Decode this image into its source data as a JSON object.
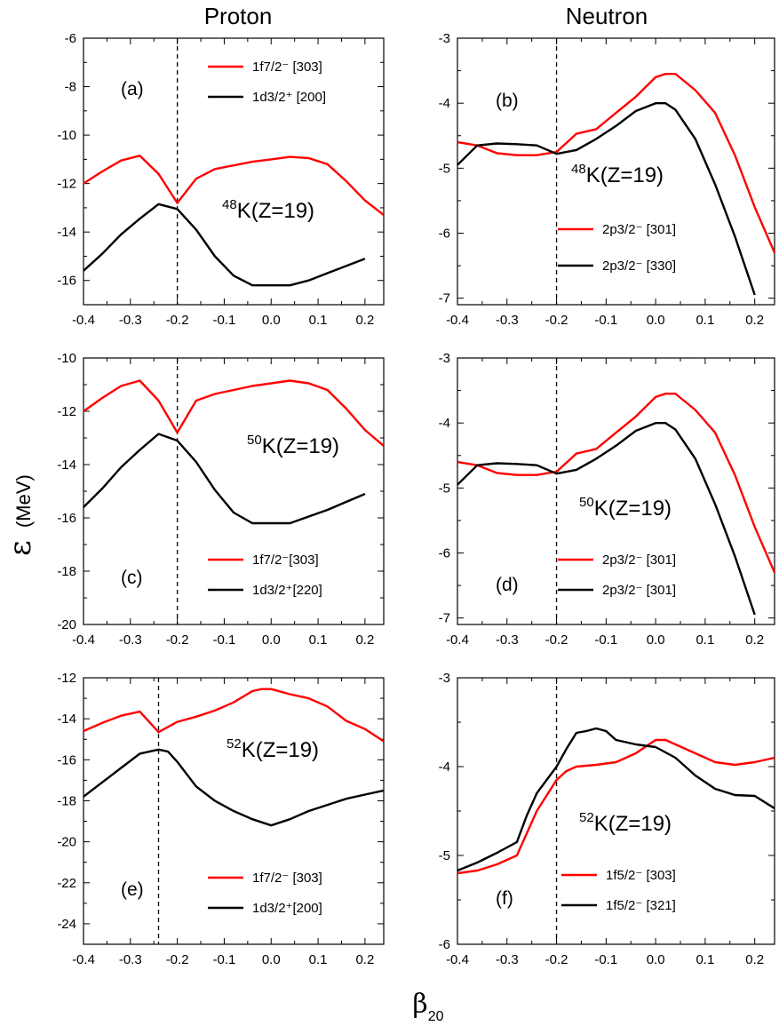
{
  "figure": {
    "column_titles": [
      "Proton",
      "Neutron"
    ],
    "y_axis_label": "ε",
    "y_axis_unit": "(MeV)",
    "x_axis_label": "β",
    "x_axis_subscript": "20"
  },
  "chart_data": [
    {
      "id": "a",
      "type": "line",
      "letter": "(a)",
      "nucleus": {
        "mass": "48",
        "text": "K(Z=19)"
      },
      "xlim": [
        -0.4,
        0.24
      ],
      "ylim": [
        -17,
        -6
      ],
      "xticks": [
        -0.4,
        -0.3,
        -0.2,
        -0.1,
        0.0,
        0.1,
        0.2
      ],
      "xtick_labels": [
        "-0.4",
        "-0.3",
        "-0.2",
        "-0.1",
        "0.0",
        "0.1",
        "0.2"
      ],
      "yticks": [
        -16,
        -14,
        -12,
        -10,
        -8,
        -6
      ],
      "ytick_labels": [
        "-16",
        "-14",
        "-12",
        "-10",
        "-8",
        "-6"
      ],
      "dashed_x": -0.2,
      "series": [
        {
          "name": "1f7/2⁻ [303]",
          "color": "#ff0000",
          "x": [
            -0.4,
            -0.36,
            -0.32,
            -0.28,
            -0.24,
            -0.2,
            -0.16,
            -0.12,
            -0.08,
            -0.04,
            0.0,
            0.04,
            0.08,
            0.12,
            0.16,
            0.2,
            0.24
          ],
          "y": [
            -12.0,
            -11.5,
            -11.05,
            -10.85,
            -11.6,
            -12.8,
            -11.8,
            -11.4,
            -11.25,
            -11.1,
            -11.0,
            -10.9,
            -10.95,
            -11.2,
            -11.9,
            -12.7,
            -13.3
          ]
        },
        {
          "name": "1d3/2⁺ [200]",
          "color": "#000000",
          "x": [
            -0.4,
            -0.36,
            -0.32,
            -0.28,
            -0.24,
            -0.2,
            -0.16,
            -0.12,
            -0.08,
            -0.04,
            0.0,
            0.04,
            0.08,
            0.12,
            0.16,
            0.2
          ],
          "y": [
            -15.6,
            -14.9,
            -14.1,
            -13.45,
            -12.85,
            -13.05,
            -13.9,
            -15.0,
            -15.8,
            -16.2,
            -16.2,
            -16.2,
            -16.0,
            -15.7,
            -15.4,
            -15.1
          ]
        }
      ]
    },
    {
      "id": "b",
      "type": "line",
      "letter": "(b)",
      "nucleus": {
        "mass": "48",
        "text": "K(Z=19)"
      },
      "xlim": [
        -0.4,
        0.24
      ],
      "ylim": [
        -7.1,
        -3
      ],
      "xticks": [
        -0.4,
        -0.3,
        -0.2,
        -0.1,
        0.0,
        0.1,
        0.2
      ],
      "xtick_labels": [
        "-0.4",
        "-0.3",
        "-0.2",
        "-0.1",
        "0.0",
        "0.1",
        "0.2"
      ],
      "yticks": [
        -7,
        -6,
        -5,
        -4,
        -3
      ],
      "ytick_labels": [
        "-7",
        "-6",
        "-5",
        "-4",
        "-3"
      ],
      "dashed_x": -0.2,
      "series": [
        {
          "name": "2p3/2⁻ [301]",
          "color": "#ff0000",
          "x": [
            -0.4,
            -0.36,
            -0.32,
            -0.28,
            -0.24,
            -0.2,
            -0.16,
            -0.12,
            -0.08,
            -0.04,
            0.0,
            0.02,
            0.04,
            0.08,
            0.12,
            0.16,
            0.2,
            0.24
          ],
          "y": [
            -4.6,
            -4.65,
            -4.77,
            -4.8,
            -4.8,
            -4.75,
            -4.47,
            -4.4,
            -4.15,
            -3.9,
            -3.6,
            -3.55,
            -3.55,
            -3.8,
            -4.15,
            -4.8,
            -5.6,
            -6.3
          ]
        },
        {
          "name": "2p3/2⁻ [330]",
          "color": "#000000",
          "x": [
            -0.4,
            -0.36,
            -0.32,
            -0.28,
            -0.24,
            -0.2,
            -0.16,
            -0.12,
            -0.08,
            -0.04,
            0.0,
            0.02,
            0.04,
            0.08,
            0.12,
            0.16,
            0.2
          ],
          "y": [
            -4.95,
            -4.65,
            -4.62,
            -4.63,
            -4.65,
            -4.78,
            -4.72,
            -4.55,
            -4.35,
            -4.12,
            -4.0,
            -4.0,
            -4.1,
            -4.55,
            -5.25,
            -6.05,
            -6.95
          ]
        }
      ]
    },
    {
      "id": "c",
      "type": "line",
      "letter": "(c)",
      "nucleus": {
        "mass": "50",
        "text": "K(Z=19)"
      },
      "xlim": [
        -0.4,
        0.24
      ],
      "ylim": [
        -20,
        -10
      ],
      "xticks": [
        -0.4,
        -0.3,
        -0.2,
        -0.1,
        0.0,
        0.1,
        0.2
      ],
      "xtick_labels": [
        "-0.4",
        "-0.3",
        "-0.2",
        "-0.1",
        "0.0",
        "0.1",
        "0.2"
      ],
      "yticks": [
        -20,
        -18,
        -16,
        -14,
        -12,
        -10
      ],
      "ytick_labels": [
        "-20",
        "-18",
        "-16",
        "-14",
        "-12",
        "-10"
      ],
      "dashed_x": -0.2,
      "series": [
        {
          "name": "1f7/2⁻[303]",
          "color": "#ff0000",
          "x": [
            -0.4,
            -0.36,
            -0.32,
            -0.28,
            -0.24,
            -0.2,
            -0.16,
            -0.12,
            -0.08,
            -0.04,
            0.0,
            0.04,
            0.08,
            0.12,
            0.16,
            0.2,
            0.24
          ],
          "y": [
            -12.0,
            -11.5,
            -11.05,
            -10.85,
            -11.6,
            -12.8,
            -11.6,
            -11.35,
            -11.2,
            -11.05,
            -10.95,
            -10.85,
            -10.95,
            -11.2,
            -11.9,
            -12.7,
            -13.3
          ]
        },
        {
          "name": "1d3/2⁺[220]",
          "color": "#000000",
          "x": [
            -0.4,
            -0.36,
            -0.32,
            -0.28,
            -0.24,
            -0.2,
            -0.16,
            -0.12,
            -0.08,
            -0.04,
            0.0,
            0.04,
            0.08,
            0.12,
            0.16,
            0.2
          ],
          "y": [
            -15.6,
            -14.9,
            -14.1,
            -13.45,
            -12.85,
            -13.1,
            -13.9,
            -14.95,
            -15.8,
            -16.2,
            -16.2,
            -16.2,
            -15.95,
            -15.7,
            -15.4,
            -15.1
          ]
        }
      ]
    },
    {
      "id": "d",
      "type": "line",
      "letter": "(d)",
      "nucleus": {
        "mass": "50",
        "text": "K(Z=19)"
      },
      "xlim": [
        -0.4,
        0.24
      ],
      "ylim": [
        -7.1,
        -3
      ],
      "xticks": [
        -0.4,
        -0.3,
        -0.2,
        -0.1,
        0.0,
        0.1,
        0.2
      ],
      "xtick_labels": [
        "-0.4",
        "-0.3",
        "-0.2",
        "-0.1",
        "0.0",
        "0.1",
        "0.2"
      ],
      "yticks": [
        -7,
        -6,
        -5,
        -4,
        -3
      ],
      "ytick_labels": [
        "-7",
        "-6",
        "-5",
        "-4",
        "-3"
      ],
      "dashed_x": -0.2,
      "series": [
        {
          "name": "2p3/2⁻ [301]",
          "color": "#ff0000",
          "x": [
            -0.4,
            -0.36,
            -0.32,
            -0.28,
            -0.24,
            -0.2,
            -0.16,
            -0.12,
            -0.08,
            -0.04,
            0.0,
            0.02,
            0.04,
            0.08,
            0.12,
            0.16,
            0.2,
            0.24
          ],
          "y": [
            -4.6,
            -4.65,
            -4.77,
            -4.8,
            -4.8,
            -4.75,
            -4.47,
            -4.4,
            -4.15,
            -3.9,
            -3.6,
            -3.55,
            -3.55,
            -3.8,
            -4.15,
            -4.8,
            -5.6,
            -6.3
          ]
        },
        {
          "name": "2p3/2⁻ [301]",
          "color": "#000000",
          "x": [
            -0.4,
            -0.36,
            -0.32,
            -0.28,
            -0.24,
            -0.2,
            -0.16,
            -0.12,
            -0.08,
            -0.04,
            0.0,
            0.02,
            0.04,
            0.08,
            0.12,
            0.16,
            0.2
          ],
          "y": [
            -4.95,
            -4.65,
            -4.62,
            -4.63,
            -4.65,
            -4.78,
            -4.72,
            -4.55,
            -4.35,
            -4.12,
            -4.0,
            -4.0,
            -4.1,
            -4.55,
            -5.25,
            -6.05,
            -6.95
          ]
        }
      ]
    },
    {
      "id": "e",
      "type": "line",
      "letter": "(e)",
      "nucleus": {
        "mass": "52",
        "text": "K(Z=19)"
      },
      "xlim": [
        -0.4,
        0.24
      ],
      "ylim": [
        -25,
        -12
      ],
      "xticks": [
        -0.4,
        -0.3,
        -0.2,
        -0.1,
        0.0,
        0.1,
        0.2
      ],
      "xtick_labels": [
        "-0.4",
        "-0.3",
        "-0.2",
        "-0.1",
        "0.0",
        "0.1",
        "0.2"
      ],
      "yticks": [
        -24,
        -22,
        -20,
        -18,
        -16,
        -14,
        -12
      ],
      "ytick_labels": [
        "-24",
        "-22",
        "-20",
        "-18",
        "-16",
        "-14",
        "-12"
      ],
      "dashed_x": -0.24,
      "series": [
        {
          "name": "1f7/2⁻ [303]",
          "color": "#ff0000",
          "x": [
            -0.4,
            -0.36,
            -0.32,
            -0.28,
            -0.24,
            -0.2,
            -0.16,
            -0.12,
            -0.08,
            -0.04,
            -0.02,
            0.0,
            0.04,
            0.08,
            0.12,
            0.16,
            0.2,
            0.24
          ],
          "y": [
            -14.6,
            -14.2,
            -13.85,
            -13.65,
            -14.65,
            -14.15,
            -13.9,
            -13.6,
            -13.2,
            -12.65,
            -12.55,
            -12.55,
            -12.8,
            -13.0,
            -13.4,
            -14.1,
            -14.5,
            -15.1
          ]
        },
        {
          "name": "1d3/2⁺[200]",
          "color": "#000000",
          "x": [
            -0.4,
            -0.36,
            -0.32,
            -0.28,
            -0.24,
            -0.22,
            -0.2,
            -0.16,
            -0.12,
            -0.08,
            -0.04,
            0.0,
            0.04,
            0.08,
            0.12,
            0.16,
            0.2,
            0.24
          ],
          "y": [
            -17.8,
            -17.1,
            -16.4,
            -15.7,
            -15.5,
            -15.6,
            -16.1,
            -17.3,
            -18.0,
            -18.5,
            -18.9,
            -19.2,
            -18.9,
            -18.5,
            -18.2,
            -17.9,
            -17.7,
            -17.5
          ]
        }
      ]
    },
    {
      "id": "f",
      "type": "line",
      "letter": "(f)",
      "nucleus": {
        "mass": "52",
        "text": "K(Z=19)"
      },
      "xlim": [
        -0.4,
        0.24
      ],
      "ylim": [
        -6,
        -3
      ],
      "xticks": [
        -0.4,
        -0.3,
        -0.2,
        -0.1,
        0.0,
        0.1,
        0.2
      ],
      "xtick_labels": [
        "-0.4",
        "-0.3",
        "-0.2",
        "-0.1",
        "0.0",
        "0.1",
        "0.2"
      ],
      "yticks": [
        -6,
        -5,
        -4,
        -3
      ],
      "ytick_labels": [
        "-6",
        "-5",
        "-4",
        "-3"
      ],
      "dashed_x": -0.2,
      "series": [
        {
          "name": "1f5/2⁻ [303]",
          "color": "#ff0000",
          "x": [
            -0.4,
            -0.36,
            -0.32,
            -0.28,
            -0.24,
            -0.2,
            -0.18,
            -0.16,
            -0.12,
            -0.08,
            -0.04,
            0.0,
            0.02,
            0.04,
            0.08,
            0.12,
            0.16,
            0.2,
            0.24
          ],
          "y": [
            -5.2,
            -5.17,
            -5.1,
            -5.0,
            -4.5,
            -4.15,
            -4.05,
            -4.0,
            -3.98,
            -3.95,
            -3.85,
            -3.7,
            -3.7,
            -3.75,
            -3.85,
            -3.95,
            -3.98,
            -3.95,
            -3.9
          ]
        },
        {
          "name": "1f5/2⁻ [321]",
          "color": "#000000",
          "x": [
            -0.4,
            -0.36,
            -0.32,
            -0.28,
            -0.26,
            -0.24,
            -0.2,
            -0.18,
            -0.16,
            -0.14,
            -0.12,
            -0.1,
            -0.08,
            -0.04,
            0.0,
            0.04,
            0.08,
            0.12,
            0.16,
            0.2,
            0.24
          ],
          "y": [
            -5.17,
            -5.08,
            -4.97,
            -4.85,
            -4.55,
            -4.3,
            -4.0,
            -3.8,
            -3.62,
            -3.6,
            -3.57,
            -3.6,
            -3.7,
            -3.75,
            -3.78,
            -3.9,
            -4.1,
            -4.25,
            -4.32,
            -4.33,
            -4.47
          ]
        }
      ]
    }
  ]
}
